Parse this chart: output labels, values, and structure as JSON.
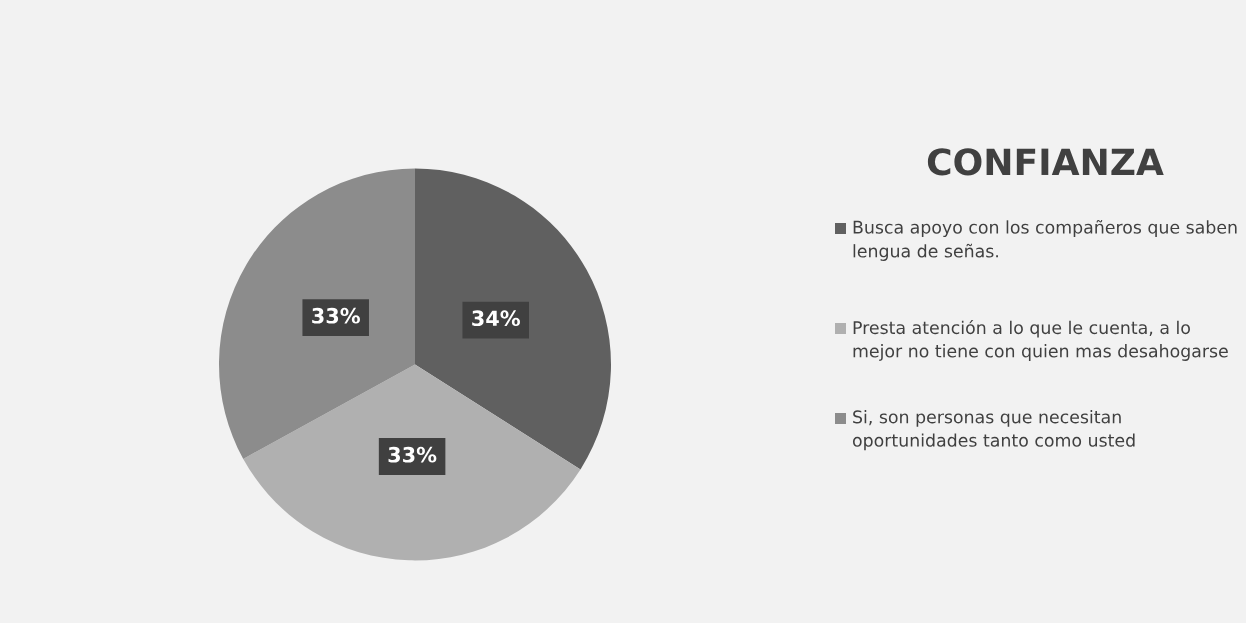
{
  "chart_data": {
    "type": "pie",
    "title": "CONFIANZA",
    "categories": [
      "Busca apoyo con los compañeros que saben lengua de señas.",
      "Presta atención a lo que le cuenta, a lo mejor no tiene con quien mas desahogarse",
      "Si, son personas que necesitan oportunidades tanto como usted"
    ],
    "values": [
      34,
      33,
      33
    ],
    "value_labels": [
      "34%",
      "33%",
      "33%"
    ],
    "colors": [
      "#606060",
      "#b0b0b0",
      "#8c8c8c"
    ],
    "legend": "right"
  }
}
